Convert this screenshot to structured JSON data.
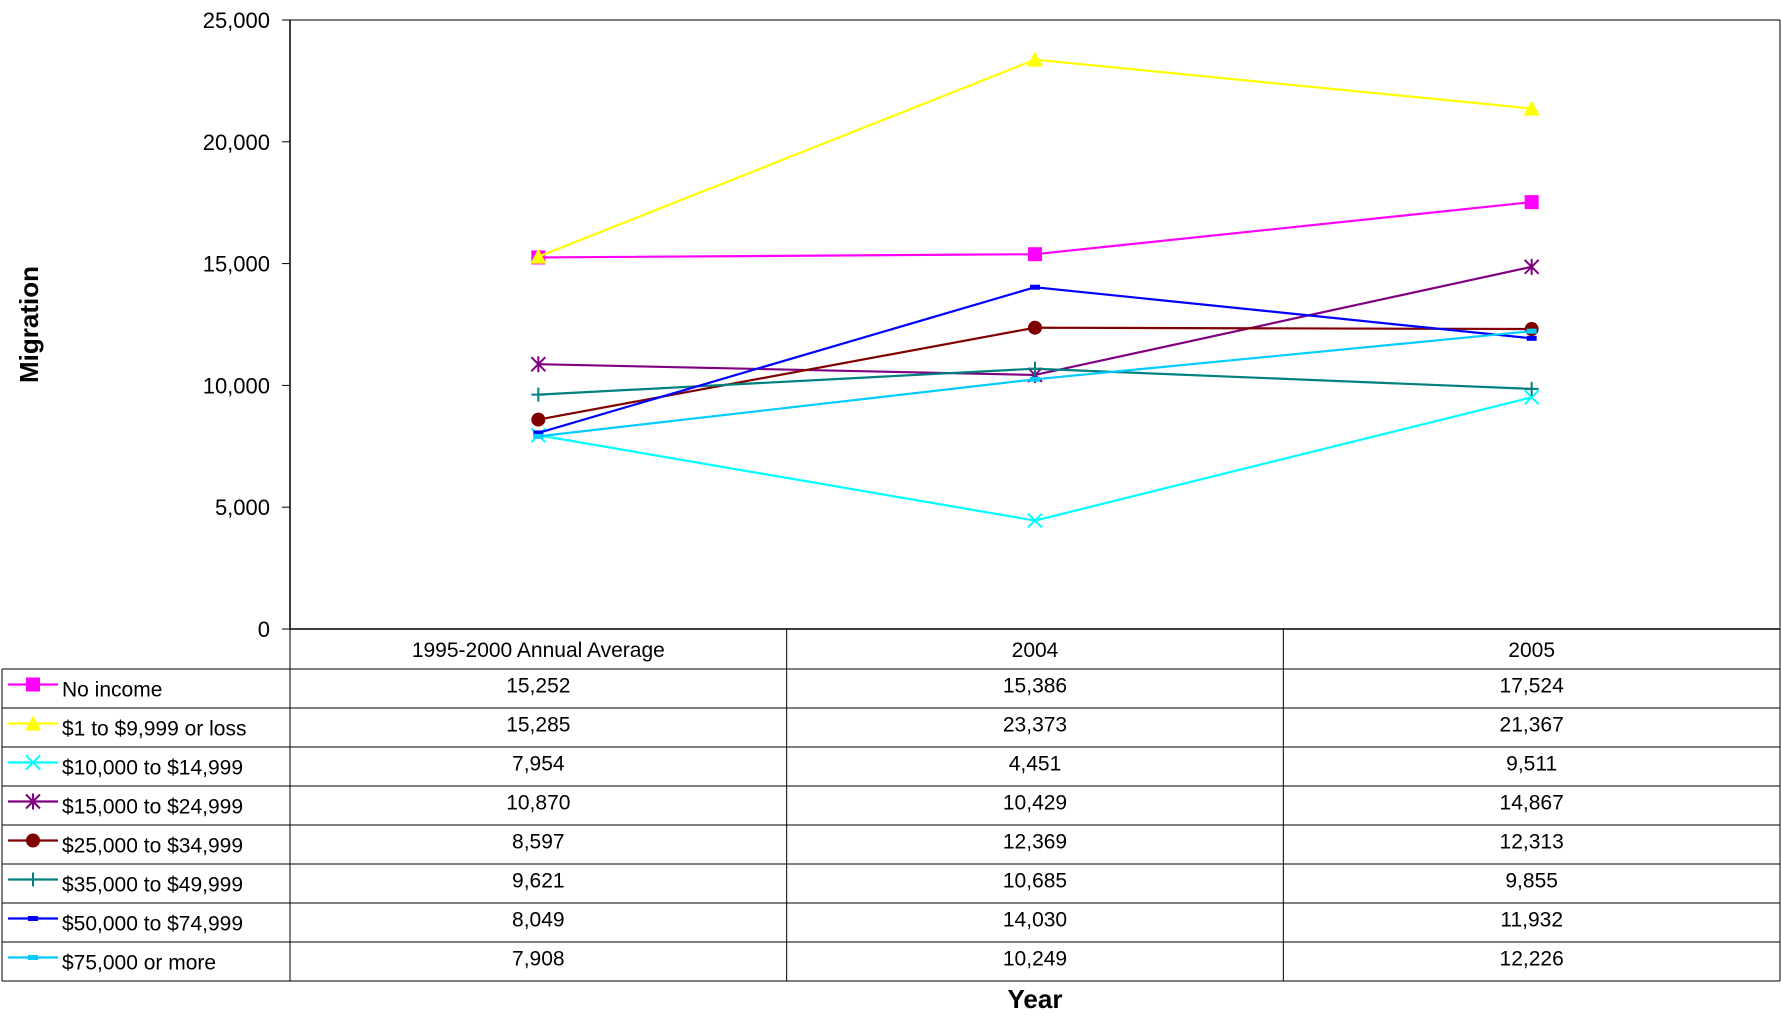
{
  "chart_data": {
    "type": "line",
    "title": "",
    "xlabel": "Year",
    "ylabel": "Migration",
    "categories": [
      "1995-2000 Annual Average",
      "2004",
      "2005"
    ],
    "ylim": [
      0,
      25000
    ],
    "yticks": [
      0,
      5000,
      10000,
      15000,
      20000,
      25000
    ],
    "ytick_labels": [
      "0",
      "5,000",
      "10,000",
      "15,000",
      "20,000",
      "25,000"
    ],
    "grid": false,
    "legend": "data-table-below",
    "series": [
      {
        "name": "No income",
        "color": "#FF00FF",
        "marker": "square",
        "values": [
          15252,
          15386,
          17524
        ],
        "labels": [
          "15,252",
          "15,386",
          "17,524"
        ]
      },
      {
        "name": "$1 to $9,999 or loss",
        "color": "#FFFF00",
        "marker": "triangle",
        "values": [
          15285,
          23373,
          21367
        ],
        "labels": [
          "15,285",
          "23,373",
          "21,367"
        ]
      },
      {
        "name": "$10,000 to $14,999",
        "color": "#00FFFF",
        "marker": "x",
        "values": [
          7954,
          4451,
          9511
        ],
        "labels": [
          "7,954",
          "4,451",
          "9,511"
        ]
      },
      {
        "name": "$15,000 to $24,999",
        "color": "#800080",
        "marker": "star",
        "values": [
          10870,
          10429,
          14867
        ],
        "labels": [
          "10,870",
          "10,429",
          "14,867"
        ]
      },
      {
        "name": "$25,000 to $34,999",
        "color": "#800000",
        "marker": "circle",
        "values": [
          8597,
          12369,
          12313
        ],
        "labels": [
          "8,597",
          "12,369",
          "12,313"
        ]
      },
      {
        "name": "$35,000 to $49,999",
        "color": "#008080",
        "marker": "plus",
        "values": [
          9621,
          10685,
          9855
        ],
        "labels": [
          "9,621",
          "10,685",
          "9,855"
        ]
      },
      {
        "name": "$50,000 to $74,999",
        "color": "#0000FF",
        "marker": "dash",
        "values": [
          8049,
          14030,
          11932
        ],
        "labels": [
          "8,049",
          "14,030",
          "11,932"
        ]
      },
      {
        "name": "$75,000 or more",
        "color": "#00CCFF",
        "marker": "dash",
        "values": [
          7908,
          10249,
          12226
        ],
        "labels": [
          "7,908",
          "10,249",
          "12,226"
        ]
      }
    ]
  }
}
